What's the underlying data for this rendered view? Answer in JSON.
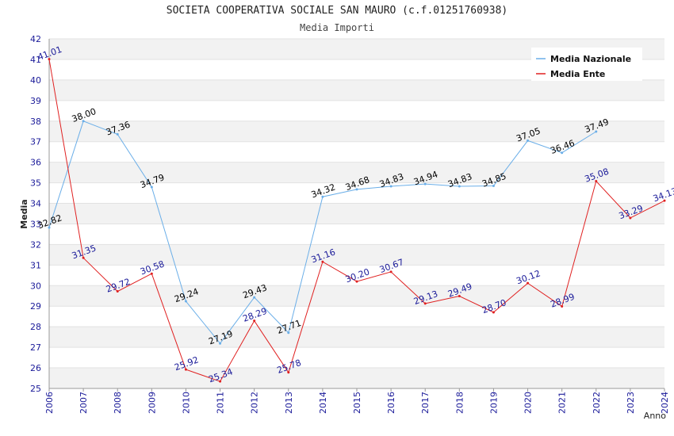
{
  "chart_data": {
    "type": "line",
    "title": "SOCIETA COOPERATIVA SOCIALE SAN MAURO (c.f.01251760938)",
    "subtitle": "Media Importi",
    "xlabel": "Anno",
    "ylabel": "Media",
    "ylim": [
      25,
      42
    ],
    "yticks": [
      25,
      26,
      27,
      28,
      29,
      30,
      31,
      32,
      33,
      34,
      35,
      36,
      37,
      38,
      39,
      40,
      41,
      42
    ],
    "x": [
      2006,
      2007,
      2008,
      2009,
      2010,
      2011,
      2012,
      2013,
      2014,
      2015,
      2016,
      2017,
      2018,
      2019,
      2020,
      2021,
      2022,
      2023,
      2024
    ],
    "legend_position": "top-right",
    "grid": true,
    "series": [
      {
        "name": "Media Nazionale",
        "color": "#6aaee8",
        "label_color": "#000000",
        "values": [
          32.82,
          38.0,
          37.36,
          34.79,
          29.24,
          27.19,
          29.43,
          27.71,
          34.32,
          34.68,
          34.83,
          34.94,
          34.83,
          34.85,
          37.05,
          36.46,
          37.49,
          null,
          null
        ],
        "labels": [
          "32.82",
          "38.00",
          "37.36",
          "34.79",
          "29.24",
          "27.19",
          "29.43",
          "27.71",
          "34.32",
          "34.68",
          "34.83",
          "34.94",
          "34.83",
          "34.85",
          "37.05",
          "36.46",
          "37.49",
          null,
          null
        ]
      },
      {
        "name": "Media Ente",
        "color": "#e02020",
        "label_color": "#1a1a99",
        "values": [
          41.01,
          31.35,
          29.72,
          30.58,
          25.92,
          25.34,
          28.29,
          25.78,
          31.16,
          30.2,
          30.67,
          29.13,
          29.49,
          28.7,
          30.12,
          28.99,
          35.08,
          33.29,
          34.13
        ],
        "labels": [
          "41.01",
          "31.35",
          "29.72",
          "30.58",
          "25.92",
          "25.34",
          "28.29",
          "25.78",
          "31.16",
          "30.20",
          "30.67",
          "29.13",
          "29.49",
          "28.70",
          "30.12",
          "28.99",
          "35.08",
          "33.29",
          "34.13"
        ]
      }
    ]
  }
}
